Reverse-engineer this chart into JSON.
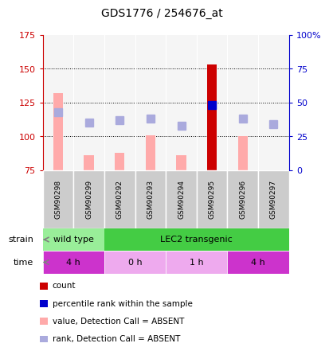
{
  "title": "GDS1776 / 254676_at",
  "samples": [
    "GSM90298",
    "GSM90299",
    "GSM90292",
    "GSM90293",
    "GSM90294",
    "GSM90295",
    "GSM90296",
    "GSM90297"
  ],
  "bar_values": [
    132,
    86,
    88,
    101,
    86,
    153,
    100,
    75
  ],
  "bar_colors": [
    "#ffaaaa",
    "#ffaaaa",
    "#ffaaaa",
    "#ffaaaa",
    "#ffaaaa",
    "#cc0000",
    "#ffaaaa",
    "#ffaaaa"
  ],
  "rank_values": [
    118,
    110,
    112,
    113,
    108,
    123,
    113,
    109
  ],
  "rank_colors": [
    "#aaaadd",
    "#aaaadd",
    "#aaaadd",
    "#aaaadd",
    "#aaaadd",
    "#0000cc",
    "#aaaadd",
    "#aaaadd"
  ],
  "ylim_left": [
    75,
    175
  ],
  "ylim_right": [
    0,
    100
  ],
  "yticks_left": [
    75,
    100,
    125,
    150,
    175
  ],
  "yticks_right": [
    0,
    25,
    50,
    75,
    100
  ],
  "ytick_labels_right": [
    "0",
    "25",
    "50",
    "75",
    "100%"
  ],
  "strain_groups": [
    {
      "label": "wild type",
      "start": 0,
      "end": 2,
      "color": "#99ee99"
    },
    {
      "label": "LEC2 transgenic",
      "start": 2,
      "end": 8,
      "color": "#44cc44"
    }
  ],
  "time_groups": [
    {
      "label": "4 h",
      "start": 0,
      "end": 2,
      "color": "#cc33cc"
    },
    {
      "label": "0 h",
      "start": 2,
      "end": 4,
      "color": "#eeaaee"
    },
    {
      "label": "1 h",
      "start": 4,
      "end": 6,
      "color": "#eeaaee"
    },
    {
      "label": "4 h",
      "start": 6,
      "end": 8,
      "color": "#cc33cc"
    }
  ],
  "legend_items": [
    {
      "label": "count",
      "color": "#cc0000"
    },
    {
      "label": "percentile rank within the sample",
      "color": "#0000cc"
    },
    {
      "label": "value, Detection Call = ABSENT",
      "color": "#ffaaaa"
    },
    {
      "label": "rank, Detection Call = ABSENT",
      "color": "#aaaadd"
    }
  ],
  "left_tick_color": "#cc0000",
  "right_tick_color": "#0000cc",
  "bar_width": 0.32,
  "rank_marker_size": 7,
  "baseline": 75,
  "grid_lines": [
    100,
    125,
    150
  ],
  "sample_box_color": "#cccccc",
  "chart_bg": "#f5f5f5"
}
